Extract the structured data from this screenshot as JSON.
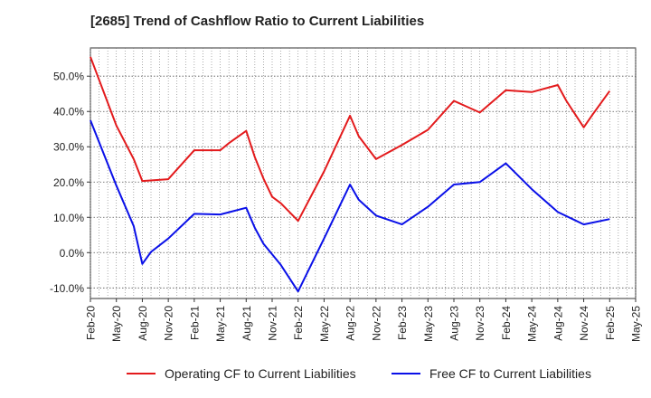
{
  "chart_data": {
    "type": "line",
    "title": "[2685]  Trend of Cashflow Ratio to Current Liabilities",
    "x_ticks": [
      "Feb-20",
      "May-20",
      "Aug-20",
      "Nov-20",
      "Feb-21",
      "May-21",
      "Aug-21",
      "Nov-21",
      "Feb-22",
      "May-22",
      "Aug-22",
      "Nov-22",
      "Feb-23",
      "May-23",
      "Aug-23",
      "Nov-23",
      "Feb-24",
      "May-24",
      "Aug-24",
      "Nov-24",
      "Feb-25",
      "May-25"
    ],
    "y_ticks": [
      "-10.0%",
      "0.0%",
      "10.0%",
      "20.0%",
      "30.0%",
      "40.0%",
      "50.0%"
    ],
    "y_tick_values": [
      -10,
      0,
      10,
      20,
      30,
      40,
      50
    ],
    "ylim": [
      -13,
      58
    ],
    "grid": true,
    "legend_position": "bottom",
    "series": [
      {
        "name": "Operating CF to Current Liabilities",
        "color": "#e31a1c",
        "points": [
          [
            "Feb-20",
            55.5
          ],
          [
            "May-20",
            36.0
          ],
          [
            "Jul-20",
            26.5
          ],
          [
            "Aug-20",
            20.3
          ],
          [
            "Nov-20",
            20.8
          ],
          [
            "Feb-21",
            29.0
          ],
          [
            "May-21",
            29.0
          ],
          [
            "Jun-21",
            31.0
          ],
          [
            "Aug-21",
            34.5
          ],
          [
            "Sep-21",
            27.0
          ],
          [
            "Oct-21",
            21.0
          ],
          [
            "Nov-21",
            15.8
          ],
          [
            "Dec-21",
            14.0
          ],
          [
            "Feb-22",
            9.0
          ],
          [
            "May-22",
            23.0
          ],
          [
            "Aug-22",
            38.8
          ],
          [
            "Sep-22",
            33.0
          ],
          [
            "Nov-22",
            26.5
          ],
          [
            "Feb-23",
            30.5
          ],
          [
            "May-23",
            34.8
          ],
          [
            "Aug-23",
            43.0
          ],
          [
            "Nov-23",
            39.7
          ],
          [
            "Feb-24",
            46.0
          ],
          [
            "May-24",
            45.5
          ],
          [
            "Aug-24",
            47.5
          ],
          [
            "Sep-24",
            43.0
          ],
          [
            "Nov-24",
            35.5
          ],
          [
            "Dec-24",
            39.0
          ],
          [
            "Feb-25",
            45.8
          ]
        ]
      },
      {
        "name": "Free CF to Current Liabilities",
        "color": "#0a10e8",
        "points": [
          [
            "Feb-20",
            37.5
          ],
          [
            "May-20",
            19.0
          ],
          [
            "Jul-20",
            7.5
          ],
          [
            "Aug-20",
            -3.2
          ],
          [
            "Sep-20",
            0.2
          ],
          [
            "Nov-20",
            4.0
          ],
          [
            "Feb-21",
            11.0
          ],
          [
            "May-21",
            10.8
          ],
          [
            "Aug-21",
            12.7
          ],
          [
            "Sep-21",
            7.0
          ],
          [
            "Oct-21",
            2.5
          ],
          [
            "Dec-21",
            -3.5
          ],
          [
            "Feb-22",
            -11.0
          ],
          [
            "May-22",
            4.0
          ],
          [
            "Aug-22",
            19.3
          ],
          [
            "Sep-22",
            15.0
          ],
          [
            "Nov-22",
            10.5
          ],
          [
            "Feb-23",
            8.0
          ],
          [
            "May-23",
            13.0
          ],
          [
            "Aug-23",
            19.3
          ],
          [
            "Nov-23",
            20.0
          ],
          [
            "Feb-24",
            25.3
          ],
          [
            "May-24",
            18.0
          ],
          [
            "Aug-24",
            11.5
          ],
          [
            "Nov-24",
            8.0
          ],
          [
            "Feb-25",
            9.5
          ]
        ]
      }
    ]
  }
}
